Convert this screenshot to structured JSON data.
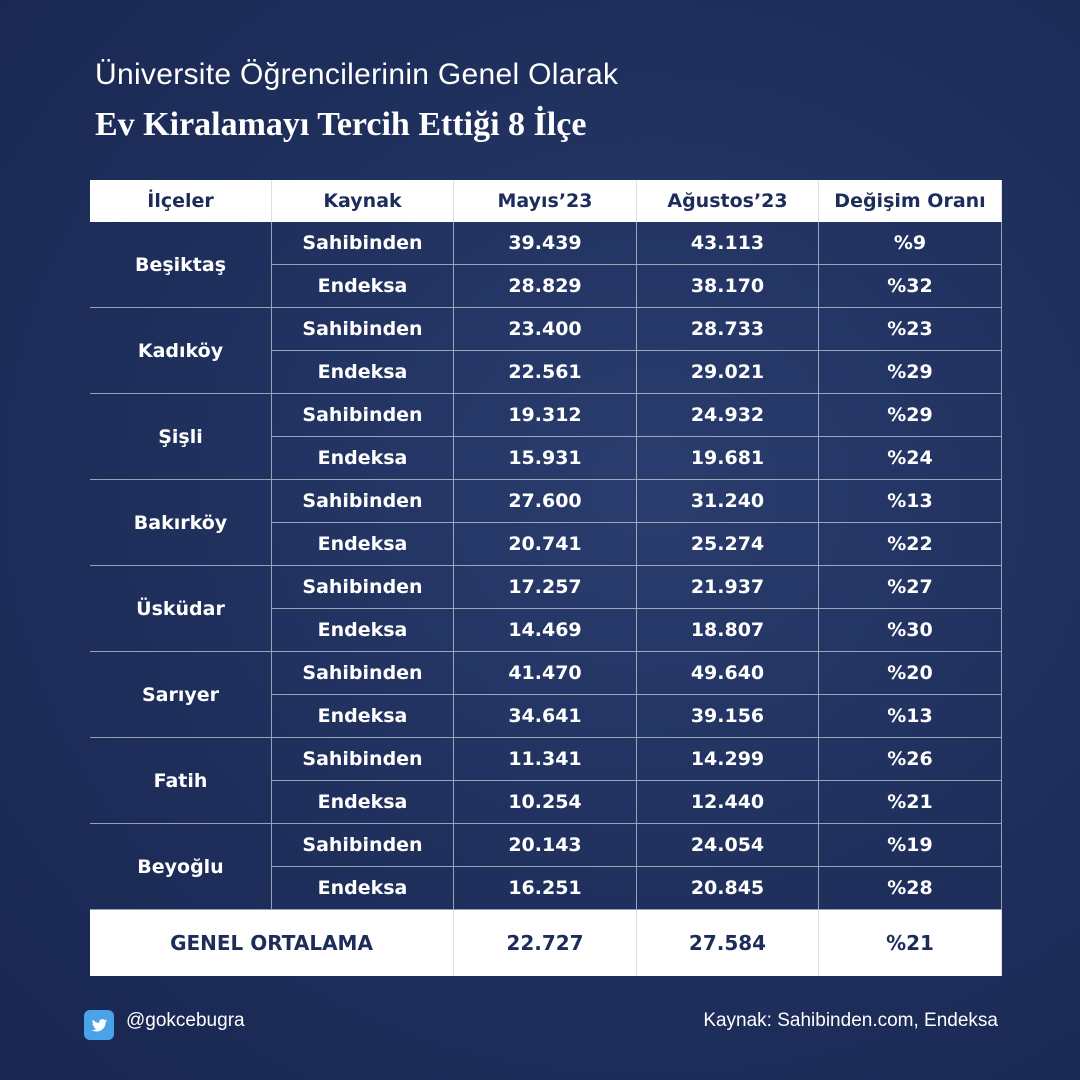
{
  "header": {
    "title_line1": "Üniversite Öğrencilerinin Genel Olarak",
    "title_line2": "Ev Kiralamayı Tercih Ettiği 8 İlçe"
  },
  "table": {
    "columns": [
      "İlçeler",
      "Kaynak",
      "Mayıs’23",
      "Ağustos’23",
      "Değişim Oranı"
    ],
    "rows": [
      {
        "district": "Beşiktaş",
        "entries": [
          [
            "Sahibinden",
            "39.439",
            "43.113",
            "%9"
          ],
          [
            "Endeksa",
            "28.829",
            "38.170",
            "%32"
          ]
        ]
      },
      {
        "district": "Kadıköy",
        "entries": [
          [
            "Sahibinden",
            "23.400",
            "28.733",
            "%23"
          ],
          [
            "Endeksa",
            "22.561",
            "29.021",
            "%29"
          ]
        ]
      },
      {
        "district": "Şişli",
        "entries": [
          [
            "Sahibinden",
            "19.312",
            "24.932",
            "%29"
          ],
          [
            "Endeksa",
            "15.931",
            "19.681",
            "%24"
          ]
        ]
      },
      {
        "district": "Bakırköy",
        "entries": [
          [
            "Sahibinden",
            "27.600",
            "31.240",
            "%13"
          ],
          [
            "Endeksa",
            "20.741",
            "25.274",
            "%22"
          ]
        ]
      },
      {
        "district": "Üsküdar",
        "entries": [
          [
            "Sahibinden",
            "17.257",
            "21.937",
            "%27"
          ],
          [
            "Endeksa",
            "14.469",
            "18.807",
            "%30"
          ]
        ]
      },
      {
        "district": "Sarıyer",
        "entries": [
          [
            "Sahibinden",
            "41.470",
            "49.640",
            "%20"
          ],
          [
            "Endeksa",
            "34.641",
            "39.156",
            "%13"
          ]
        ]
      },
      {
        "district": "Fatih",
        "entries": [
          [
            "Sahibinden",
            "11.341",
            "14.299",
            "%26"
          ],
          [
            "Endeksa",
            "10.254",
            "12.440",
            "%21"
          ]
        ]
      },
      {
        "district": "Beyoğlu",
        "entries": [
          [
            "Sahibinden",
            "20.143",
            "24.054",
            "%19"
          ],
          [
            "Endeksa",
            "16.251",
            "20.845",
            "%28"
          ]
        ]
      }
    ],
    "total": [
      "GENEL ORTALAMA",
      "22.727",
      "27.584",
      "%21"
    ]
  },
  "footer": {
    "handle": "@gokcebugra",
    "source": "Kaynak: Sahibinden.com, Endeksa"
  }
}
